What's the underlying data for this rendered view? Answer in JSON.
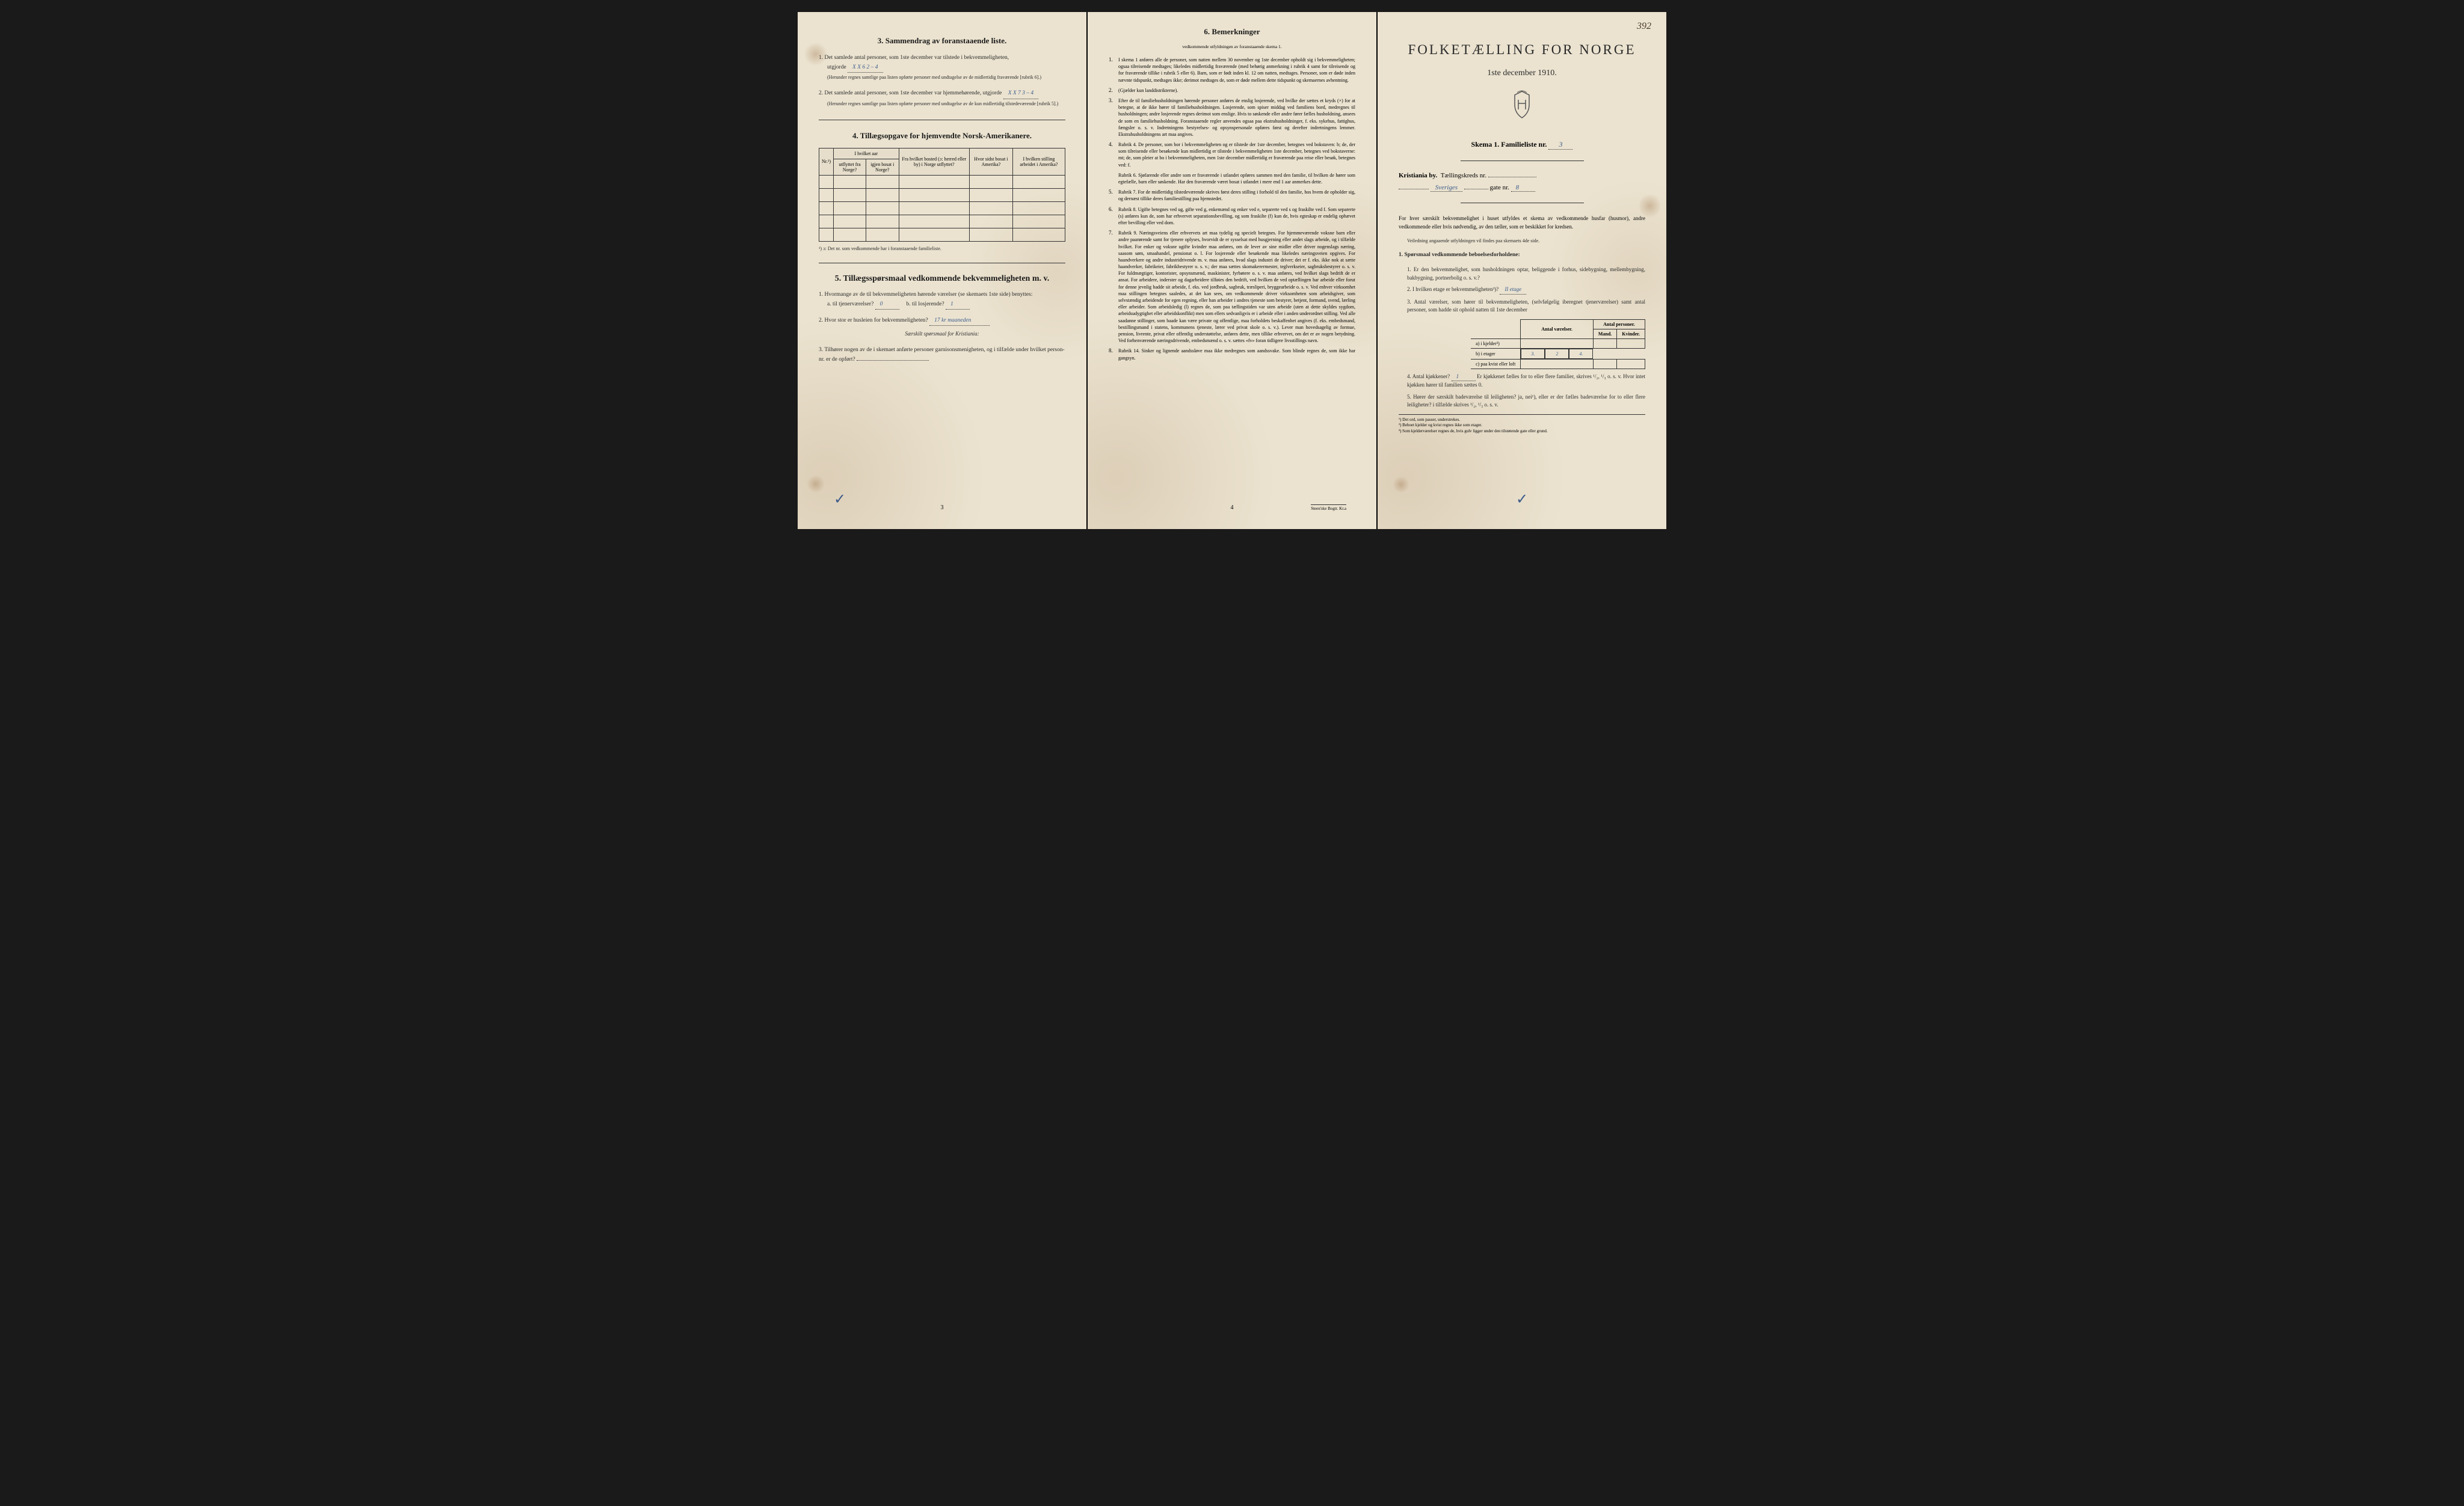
{
  "pageNumberCorner": "392",
  "page3": {
    "section3": {
      "title": "3. Sammendrag av foranstaaende liste.",
      "q1": "1. Det samlede antal personer, som 1ste december var tilstede i bekvemmeligheten,",
      "q1_cont": "utgjorde",
      "q1_value": "X X 6   2 – 4",
      "q1_note": "(Herunder regnes samtlige paa listen opførte personer med undtagelse av de midlertidig fraværende [rubrik 6].)",
      "q2": "2. Det samlede antal personer, som 1ste december var hjemmehørende, utgjorde",
      "q2_value": "X X 7   3 – 4",
      "q2_note": "(Herunder regnes samtlige paa listen opførte personer med undtagelse av de kun midlertidig tilstedeværende [rubrik 5].)"
    },
    "section4": {
      "title": "4. Tillægsopgave for hjemvendte Norsk-Amerikanere.",
      "headers": [
        "Nr.¹)",
        "I hvilket aar",
        "Fra hvilket bosted (ɔ: herred eller by) i Norge utflyttet?",
        "Hvor sidst bosat i Amerika?",
        "I hvilken stilling arbeidet i Amerika?"
      ],
      "subheaders": [
        "utflyttet fra Norge?",
        "igjen bosat i Norge?"
      ],
      "footnote": "¹) ɔ: Det nr. som vedkommende har i foranstaaende familieliste."
    },
    "section5": {
      "title": "5. Tillægsspørsmaal vedkommende bekvemmeligheten m. v.",
      "q1": "1. Hvormange av de til bekvemmeligheten hørende værelser (se skemaets 1ste side) benyttes:",
      "q1a": "a. til tjenerværelser?",
      "q1a_value": "0",
      "q1b": "b. til losjerende?",
      "q1b_value": "1",
      "q2": "2. Hvor stor er husleien for bekvemmeligheten?",
      "q2_value": "17 kr maaneden",
      "q2_note": "Særskilt spørsmaal for Kristiania:",
      "q3": "3. Tilhører nogen av de i skemaet anførte personer garnisonsmenigheten, og i tilfælde under hvilket person-nr. er de opført?"
    },
    "pageNum": "3"
  },
  "page4": {
    "title": "6. Bemerkninger",
    "subtitle": "vedkommende utfyldningen av foranstaaende skema 1.",
    "items": [
      {
        "num": "1.",
        "text": "I skema 1 anføres alle de personer, som natten mellem 30 november og 1ste december opholdt sig i bekvemmeligheten; ogsaa tilreisende medtages; likeledes midlertidig fraværende (med behørig anmerkning i rubrik 4 samt for tilreisende og for fraværende tillike i rubrik 5 eller 6). Barn, som er født inden kl. 12 om natten, medtages. Personer, som er døde inden nævnte tidspunkt, medtages ikke; derimot medtages de, som er døde mellem dette tidspunkt og skemaernes avhentning."
      },
      {
        "num": "2.",
        "text": "(Gjælder kun landdistrikterne)."
      },
      {
        "num": "3.",
        "text": "Efter de til familiehusholdningen hørende personer anføres de enslig losjerende, ved hvilke der sættes et kryds (×) for at betegne, at de ikke hører til familiehusholdningen. Losjerende, som spiser middag ved familiens bord, medregnes til husholdningen; andre losjerende regnes derimot som enslige. Hvis to søskende eller andre fører fælles husholdning, ansees de som en familiehusholdning. Foranstaaende regler anvendes ogsaa paa ekstrahusholdninger, f. eks. sykehus, fattighus, fængsler o. s. v. Indretningens bestyrelses- og opsynspersonale opføres først og derefter indretningens lemmer. Ekstrahusholdningens art maa angives."
      },
      {
        "num": "4.",
        "text": "Rubrik 4. De personer, som bor i bekvemmeligheten og er tilstede der 1ste december, betegnes ved bokstaven: b; de, der som tilreisende eller besøkende kun midlertidig er tilstede i bekvemmeligheten 1ste december, betegnes ved bokstaverne: mt; de, som pleier at bo i bekvemmeligheten, men 1ste december midlertidig er fraværende paa reise eller besøk, betegnes ved: f."
      },
      {
        "num": "",
        "text": "Rubrik 6. Sjøfarende eller andre som er fraværende i utlandet opføres sammen med den familie, til hvilken de hører som egtefælle, barn eller søskende. Har den fraværende været bosat i utlandet i mere end 1 aar anmerkes dette."
      },
      {
        "num": "5.",
        "text": "Rubrik 7. For de midlertidig tilstedeværende skrives først deres stilling i forhold til den familie, hos hvem de opholder sig, og dernæst tillike deres familiestilling paa hjemstedet."
      },
      {
        "num": "6.",
        "text": "Rubrik 8. Ugifte betegnes ved ug, gifte ved g, enkemænd og enker ved e, separerte ved s og fraskilte ved f. Som separerte (s) anføres kun de, som har erhvervet separationsbevilling, og som fraskilte (f) kun de, hvis egteskap er endelig ophævet efter bevilling eller ved dom."
      },
      {
        "num": "7.",
        "text": "Rubrik 9. Næringsveiens eller erhvervets art maa tydelig og specielt betegnes. For hjemmeværende voksne barn eller andre paarørende samt for tjenere oplyses, hvorvidt de er sysselsat med husgjerning eller andet slags arbeide, og i tilfælde hvilket. For enker og voksne ugifte kvinder maa anføres, om de lever av sine midler eller driver nogenslags næring, saasom søm, smaahandel, pensionat o. l. For losjerende eller besøkende maa likeledes næringsveien opgives. For haandverkere og andre industridrivende m. v. maa anføres, hvad slags industri de driver; det er f. eks. ikke nok at sætte haandverker, fabrikeier, fabrikbestyrer o. s. v.; der maa sættes skomakerermester, teglverkseier, sagbruksbestyrer o. s. v. For fuldmægtiger, kontorister, opsynsmænd, maskinister, fyrbøtere o. s. v. maa anføres, ved hvilket slags bedrift de er ansat. For arbeidere, inderster og dagarbeidere tilføies den bedrift, ved hvilken de ved optællingen har arbeide eller forut for denne jevnlig hadde sit arbeide, f. eks. ved jordbruk, sagbruk, træsliperi, bryggearbeide o. s. v. Ved enhver virksomhet maa stillingen betegnes saaledes, at det kan sees, om vedkommende driver virksomheten som arbeidsgiver, som selvstændig arbeidende for egen regning, eller han arbeider i andres tjeneste som bestyrer, betjent, formand, svend, lærling eller arbeider. Som arbeidsledig (l) regnes de, som paa tællingstiden var uten arbeide (uten at dette skyldes sygdom, arbeidsudygtighet eller arbeidskonflikt) men som ellers sedvanligvis er i arbeide eller i anden underordnet stilling. Ved alle saadanne stillinger, som baade kan være private og offentlige, maa forholdets beskaffenhet angives (f. eks. embedsmand, bestillingsmand i statens, kommunens tjeneste, lærer ved privat skole o. s. v.). Lever man hovedsagelig av formue, pension, livrente, privat eller offentlig understøttelse, anføres dette, men tillike erhvervet, om det er av nogen betydning. Ved forhenværende næringsdrivende, embedsmænd o. s. v. sættes «fv» foran tidligere livsstillings navn."
      },
      {
        "num": "8.",
        "text": "Rubrik 14. Sinker og lignende aandssløve maa ikke medregnes som aandssvake. Som blinde regnes de, som ikke har gangsyn."
      }
    ],
    "pageNum": "4",
    "printer": "Steen'ske Bogtr.  Kr.a"
  },
  "page1": {
    "mainTitle": "FOLKETÆLLING FOR NORGE",
    "date": "1ste december 1910.",
    "schemaLabel": "Skema 1.  Familieliste nr.",
    "schemaValue": "3",
    "location1": "Kristiania by.",
    "location1b": "Tællingskreds nr.",
    "location2_value": "Sveriges",
    "location2_suffix": "gate nr.",
    "location2_num": "8",
    "intro": "For hver særskilt bekvemmelighet i huset utfyldes et skema av vedkommende husfar (husmor), andre vedkommende eller hvis nødvendig, av den tæller, som er beskikket for kredsen.",
    "intro_note": "Veiledning angaaende utfyldningen vil findes paa skemaets 4de side.",
    "section1": {
      "title": "1. Spørsmaal vedkommende beboelsesforholdene:",
      "q1": "1. Er den bekvemmelighet, som husholdningen optar, beliggende i forhus, sidebygning, mellembygning, bakbygning, portnerbolig o. s. v.?",
      "q2": "2. I hvilken etage er bekvemmeligheten³)?",
      "q2_value": "II etage",
      "q3": "3. Antal værelser, som hører til bekvemmeligheten, (selvfølgelig iberegnet tjenerværelser) samt antal personer, som hadde sit ophold natten til 1ste december",
      "tableHeaders": [
        "",
        "Antal værelser.",
        "Antal personer."
      ],
      "tableSubHeaders": [
        "Mand.",
        "Kvinder."
      ],
      "rows": [
        {
          "label": "a) i kjelder³)",
          "v": "",
          "m": "",
          "k": ""
        },
        {
          "label": "b) i etager",
          "v": "3.",
          "m": "2",
          "k": "4."
        },
        {
          "label": "c) paa kvist eller loft",
          "v": "",
          "m": "",
          "k": ""
        }
      ],
      "q4": "4. Antal kjøkkener?",
      "q4_value": "1",
      "q4_cont": "Er kjøkkenet fælles for to eller flere familier, skrives ¹/₂, ¹/₃ o. s. v. Hvor intet kjøkken hører til familien sættes 0.",
      "q5": "5. Hører der særskilt badeværelse til leiligheten? ja, nei¹), eller er der fælles badeværelse for to eller flere leiligheter? i tilfælde skrives ¹/₂, ¹/₃ o. s. v."
    },
    "footnotes": [
      "¹) Det ord, som passer, understrekes.",
      "²) Beboet kjelder og kvist regnes ikke som etager.",
      "³) Som kjelderværelser regnes de, hvis gulv ligger under den tilstøtende gate eller grund."
    ]
  }
}
